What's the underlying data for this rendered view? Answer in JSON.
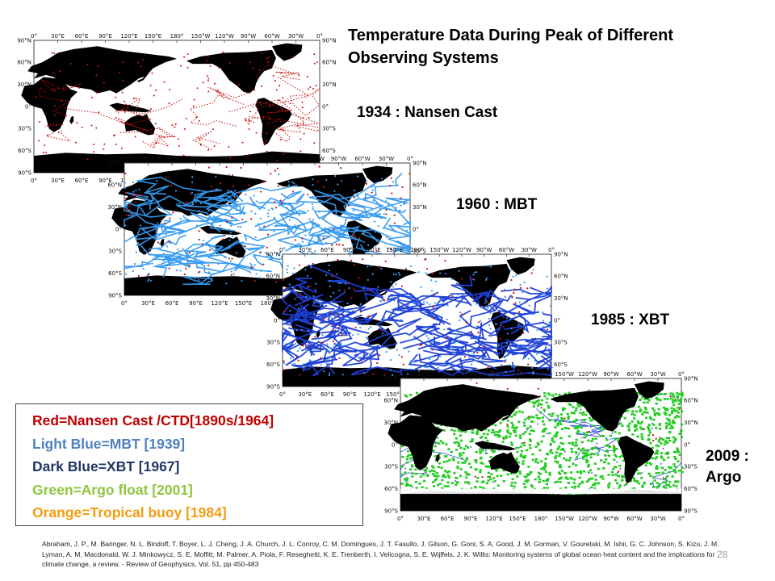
{
  "slide": {
    "title": "Temperature Data During Peak of Different Observing Systems",
    "page_number": "28"
  },
  "panels": [
    {
      "id": "nansen",
      "label": "1934 : Nansen Cast",
      "dominant_color": "#cc1111"
    },
    {
      "id": "mbt",
      "label": "1960 : MBT",
      "dominant_color": "#3399ee"
    },
    {
      "id": "xbt",
      "label": "1985 : XBT",
      "dominant_color": "#1f3fd6"
    },
    {
      "id": "argo",
      "label_line1": "2009 :",
      "label_line2": "Argo",
      "dominant_color": "#22cc22"
    }
  ],
  "map_axes": {
    "lon_top": [
      "0°",
      "30°E",
      "60°E",
      "90°E",
      "120°E",
      "150°E",
      "180°",
      "150°W",
      "120°W",
      "90°W",
      "60°W",
      "30°W",
      "0°"
    ],
    "lon_bottom": [
      "0°",
      "30°E",
      "60°E",
      "90°E",
      "120°E",
      "150°E",
      "180°",
      "150°W",
      "120°W",
      "90°W",
      "60°W",
      "30°W",
      "0°"
    ],
    "lat_left": [
      "90°N",
      "60°N",
      "30°N",
      "0°",
      "30°S",
      "60°S",
      "90°S"
    ],
    "lat_right": [
      "90°N",
      "60°N",
      "30°N",
      "0°",
      "30°S",
      "60°S",
      "90°S"
    ]
  },
  "legend": {
    "items": [
      {
        "text": "Red=Nansen Cast /CTD[1890s/1964]",
        "color": "#c00000"
      },
      {
        "text": "Light Blue=MBT [1939]",
        "color": "#4f81bd"
      },
      {
        "text": "Dark Blue=XBT [1967]",
        "color": "#1f3864"
      },
      {
        "text": "Green=Argo float [2001]",
        "color": "#8ec63f"
      },
      {
        "text": "Orange=Tropical buoy [1984]",
        "color": "#f39c12"
      }
    ]
  },
  "citation": "Abraham, J. P., M. Baringer, N. L. Bindoff, T. Boyer, L. J. Cheng, J. A. Church, J. L. Conroy, C. M. Domingues, J. T. Fasullo, J. Gilson, G. Goni, S. A. Good, J. M. Gorman, V. Gouretski, M. Ishii, G. C. Johnson, S. Kizu, J. M. Lyman, A. M. Macdonald, W. J. Minkowycz, S. E. Moffitt, M. Palmer, A. Piola, F. Reseghetti, K. E. Trenberth, I. Velicogna, S. E. Wijffels, J. K. Willis: Monitoring systems of global ocean heat content and the implications for climate change, a review. - Review of Geophysics, Vol. 51, pp 450-483"
}
